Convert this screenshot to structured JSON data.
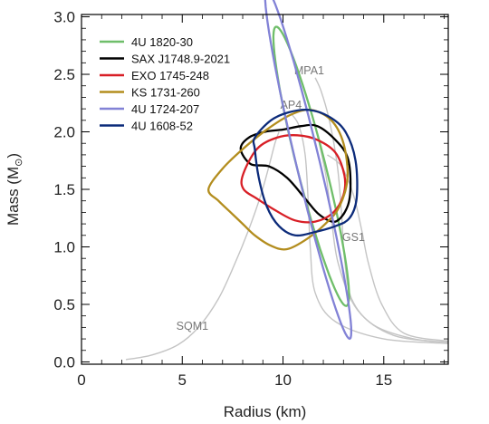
{
  "chart_data": {
    "type": "line",
    "title": "",
    "xlabel": "Radius (km)",
    "ylabel_main": "Mass (M",
    "ylabel_sub": "⊙",
    "ylabel_close": ")",
    "xlim": [
      0,
      18.2
    ],
    "ylim": [
      -0.02,
      3.02
    ],
    "xticks": [
      "0",
      "5",
      "10",
      "15"
    ],
    "xtick_values": [
      0,
      5,
      10,
      15
    ],
    "yticks": [
      "0.0",
      "0.5",
      "1.0",
      "1.5",
      "2.0",
      "2.5",
      "3.0"
    ],
    "ytick_values": [
      0.0,
      0.5,
      1.0,
      1.5,
      2.0,
      2.5,
      3.0
    ],
    "grid": false,
    "legend_position": "top-left",
    "eos_color": "#c4c4c4",
    "eos_curves": [
      {
        "name": "SQM1",
        "label_at": [
          5.5,
          0.28
        ],
        "points": [
          [
            2.2,
            0.02
          ],
          [
            3.5,
            0.06
          ],
          [
            4.8,
            0.15
          ],
          [
            5.8,
            0.3
          ],
          [
            6.8,
            0.55
          ],
          [
            7.6,
            0.85
          ],
          [
            8.3,
            1.15
          ],
          [
            8.9,
            1.45
          ],
          [
            9.3,
            1.7
          ],
          [
            9.6,
            1.9
          ],
          [
            9.8,
            2.0
          ]
        ]
      },
      {
        "name": "MPA1",
        "label_at": [
          11.3,
          2.5
        ],
        "points": [
          [
            18.2,
            0.17
          ],
          [
            16.5,
            0.2
          ],
          [
            14.5,
            0.32
          ],
          [
            13.4,
            0.55
          ],
          [
            13.05,
            0.9
          ],
          [
            12.9,
            1.3
          ],
          [
            12.7,
            1.7
          ],
          [
            12.3,
            2.1
          ],
          [
            11.9,
            2.35
          ],
          [
            11.6,
            2.47
          ]
        ]
      },
      {
        "name": "AP4",
        "label_at": [
          10.4,
          2.2
        ],
        "points": [
          [
            18.2,
            0.16
          ],
          [
            15.0,
            0.2
          ],
          [
            12.6,
            0.35
          ],
          [
            11.6,
            0.6
          ],
          [
            11.35,
            1.0
          ],
          [
            11.25,
            1.4
          ],
          [
            11.1,
            1.8
          ],
          [
            10.8,
            2.05
          ],
          [
            10.45,
            2.15
          ]
        ]
      },
      {
        "name": "GS1",
        "label_at": [
          13.5,
          1.05
        ],
        "points": [
          [
            18.2,
            0.18
          ],
          [
            16.0,
            0.25
          ],
          [
            14.9,
            0.5
          ],
          [
            14.25,
            0.85
          ],
          [
            13.9,
            1.15
          ],
          [
            13.5,
            1.45
          ],
          [
            12.9,
            1.7
          ],
          [
            12.2,
            1.8
          ]
        ]
      },
      {
        "name": "",
        "label_at": null,
        "points": [
          [
            18.2,
            0.17
          ],
          [
            15.5,
            0.23
          ],
          [
            13.7,
            0.45
          ],
          [
            12.75,
            0.85
          ],
          [
            12.4,
            1.25
          ],
          [
            12.15,
            1.6
          ],
          [
            11.8,
            1.9
          ]
        ]
      }
    ],
    "series": [
      {
        "name": "4U 1820-30",
        "color": "#6fbe6a",
        "contour": {
          "cx": 11.4,
          "cy": 1.7,
          "rx": 2.2,
          "ry": 0.4,
          "rot_deg": -32
        }
      },
      {
        "name": "SAX J1748.9-2021",
        "color": "#000000",
        "points": [
          [
            7.9,
            1.85
          ],
          [
            8.3,
            1.95
          ],
          [
            9.1,
            2.0
          ],
          [
            10.0,
            2.02
          ],
          [
            10.9,
            2.05
          ],
          [
            11.7,
            2.05
          ],
          [
            12.6,
            1.93
          ],
          [
            13.2,
            1.78
          ],
          [
            13.35,
            1.55
          ],
          [
            13.2,
            1.35
          ],
          [
            12.6,
            1.22
          ],
          [
            11.8,
            1.28
          ],
          [
            11.1,
            1.42
          ],
          [
            10.2,
            1.6
          ],
          [
            9.3,
            1.7
          ],
          [
            8.4,
            1.72
          ],
          [
            7.9,
            1.8
          ]
        ]
      },
      {
        "name": "EXO 1745-248",
        "color": "#d81f26",
        "points": [
          [
            8.0,
            1.62
          ],
          [
            8.7,
            1.85
          ],
          [
            9.7,
            1.95
          ],
          [
            10.7,
            1.97
          ],
          [
            11.7,
            1.93
          ],
          [
            12.6,
            1.82
          ],
          [
            13.05,
            1.62
          ],
          [
            13.0,
            1.45
          ],
          [
            12.5,
            1.3
          ],
          [
            11.6,
            1.22
          ],
          [
            10.6,
            1.23
          ],
          [
            9.6,
            1.32
          ],
          [
            8.7,
            1.42
          ],
          [
            8.05,
            1.5
          ],
          [
            8.0,
            1.62
          ]
        ]
      },
      {
        "name": "KS 1731-260",
        "color": "#b38d1e",
        "points": [
          [
            6.3,
            1.5
          ],
          [
            7.0,
            1.68
          ],
          [
            8.0,
            1.85
          ],
          [
            9.2,
            2.02
          ],
          [
            10.4,
            2.15
          ],
          [
            11.4,
            2.19
          ],
          [
            12.4,
            2.1
          ],
          [
            13.0,
            1.9
          ],
          [
            13.2,
            1.6
          ],
          [
            12.8,
            1.35
          ],
          [
            12.1,
            1.2
          ],
          [
            11.2,
            1.07
          ],
          [
            10.2,
            0.98
          ],
          [
            9.4,
            1.01
          ],
          [
            8.6,
            1.1
          ],
          [
            8.0,
            1.2
          ],
          [
            7.4,
            1.3
          ],
          [
            6.8,
            1.4
          ],
          [
            6.3,
            1.5
          ]
        ]
      },
      {
        "name": "4U 1724-207",
        "color": "#8282d6",
        "contour": {
          "cx": 11.25,
          "cy": 1.72,
          "rx": 2.6,
          "ry": 0.35,
          "rot_deg": -35
        }
      },
      {
        "name": "4U 1608-52",
        "color": "#0c2b7a",
        "points": [
          [
            8.6,
            1.95
          ],
          [
            9.4,
            2.1
          ],
          [
            10.3,
            2.17
          ],
          [
            11.3,
            2.19
          ],
          [
            12.3,
            2.13
          ],
          [
            13.1,
            2.0
          ],
          [
            13.6,
            1.75
          ],
          [
            13.65,
            1.42
          ],
          [
            13.3,
            1.25
          ],
          [
            12.6,
            1.18
          ],
          [
            11.6,
            1.13
          ],
          [
            10.6,
            1.1
          ],
          [
            9.8,
            1.18
          ],
          [
            9.2,
            1.35
          ],
          [
            8.8,
            1.6
          ],
          [
            8.6,
            1.85
          ],
          [
            8.6,
            1.95
          ]
        ]
      }
    ]
  }
}
